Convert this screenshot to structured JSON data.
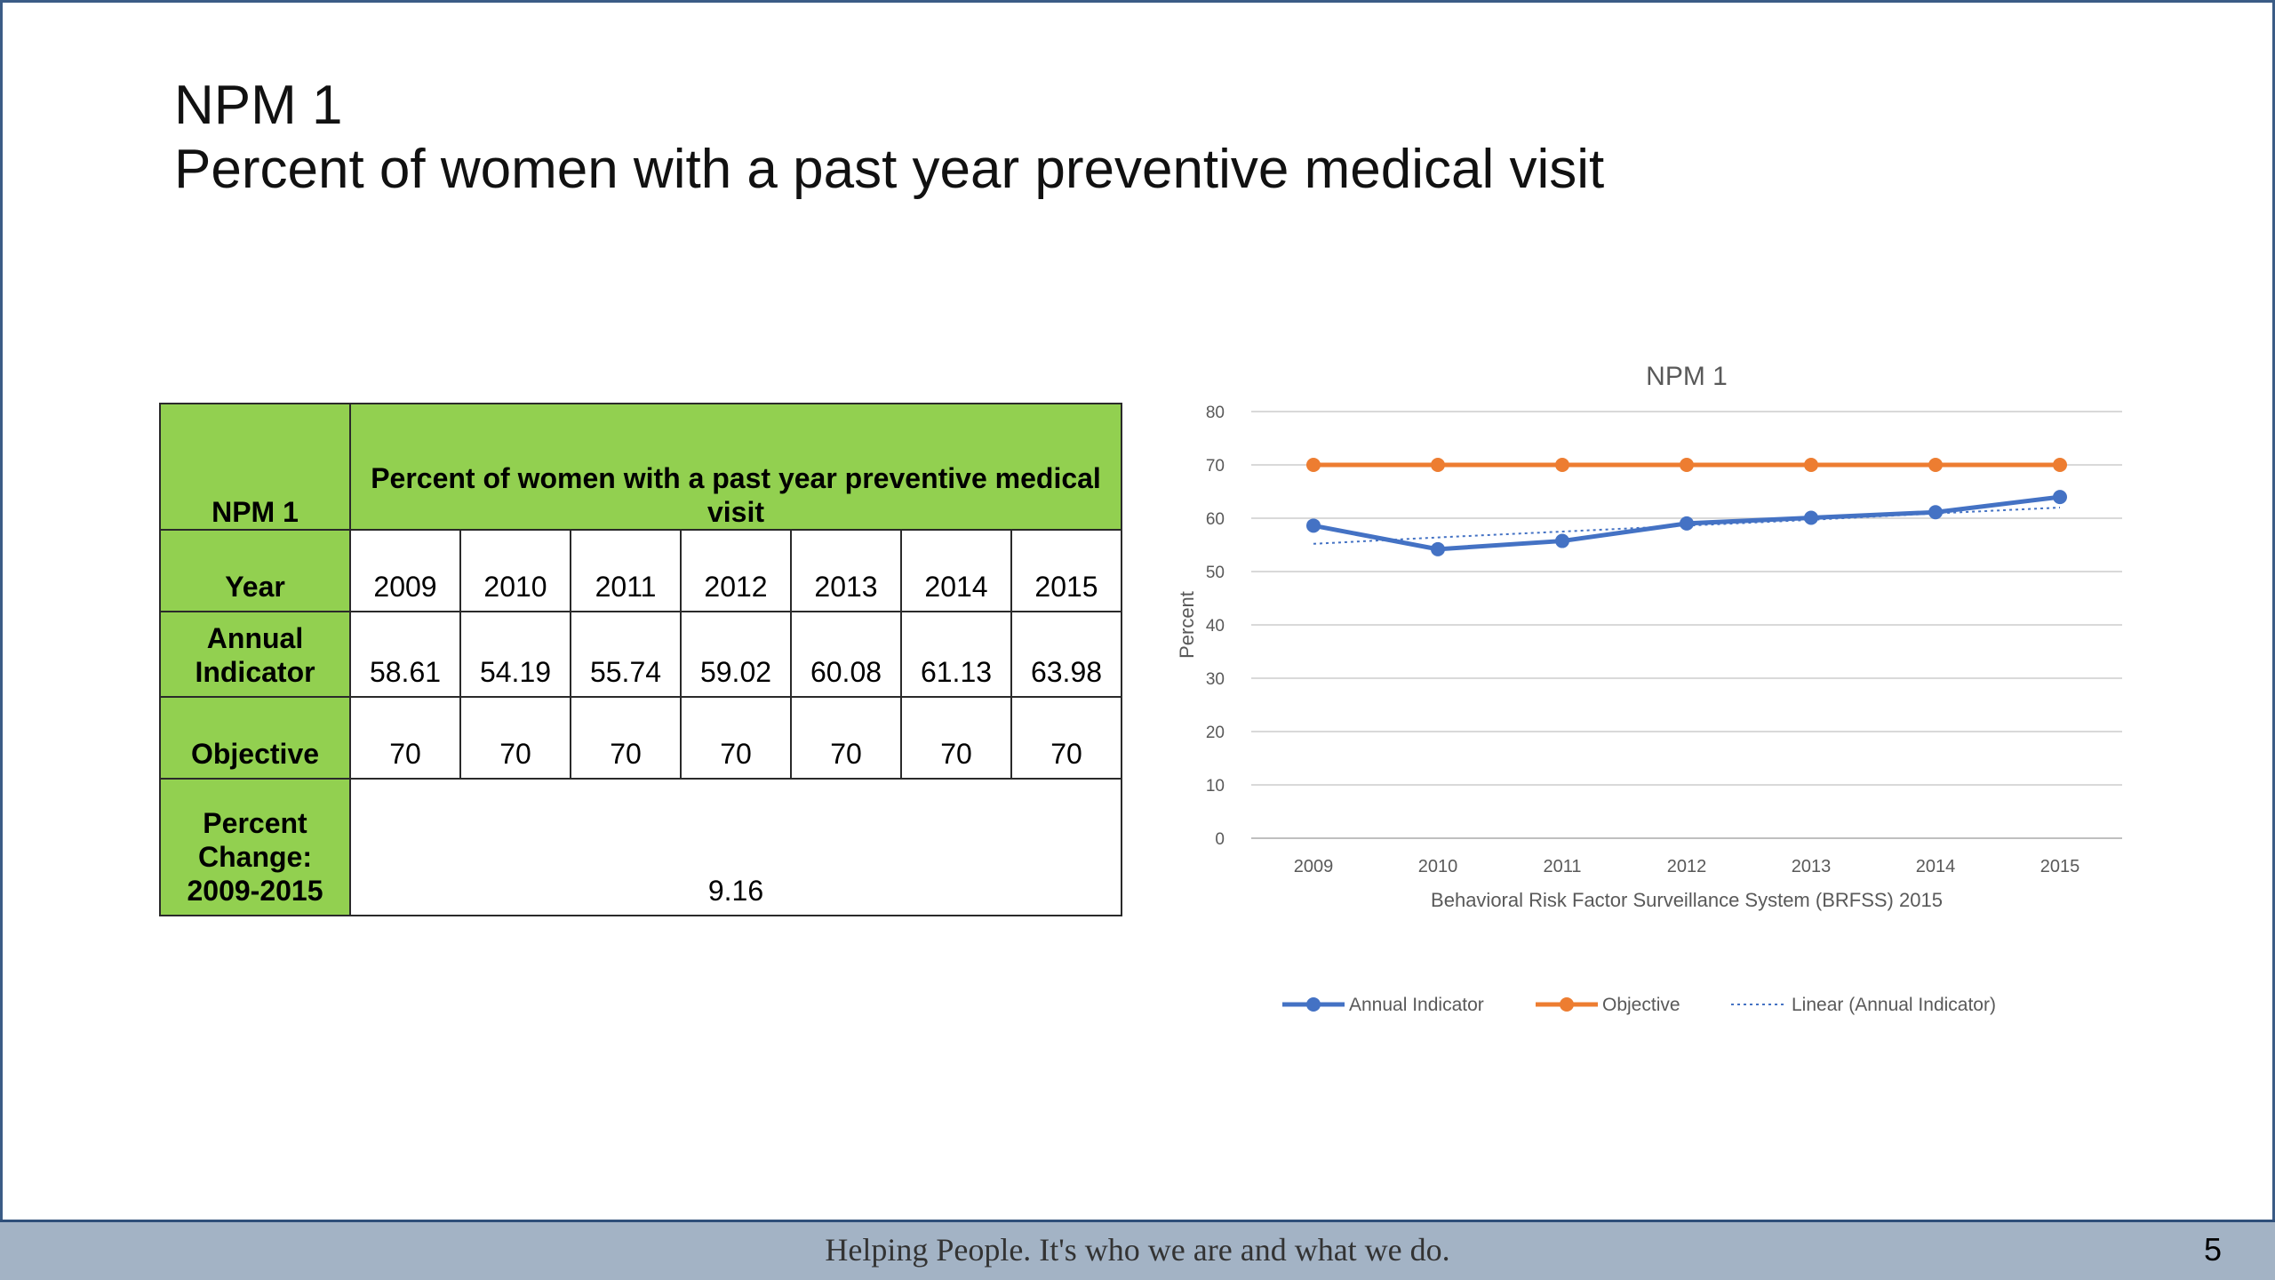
{
  "slide": {
    "title_line1": "NPM 1",
    "title_line2": "Percent of women with a past year preventive medical visit",
    "footer_text": "Helping People.  It's who we are and what we do.",
    "page_number": "5"
  },
  "table": {
    "header_label": "NPM 1",
    "header_title": "Percent of women with a past year preventive medical visit",
    "year_label": "Year",
    "years": [
      "2009",
      "2010",
      "2011",
      "2012",
      "2013",
      "2014",
      "2015"
    ],
    "annual_label_1": "Annual",
    "annual_label_2": "Indicator",
    "annual_values": [
      "58.61",
      "54.19",
      "55.74",
      "59.02",
      "60.08",
      "61.13",
      "63.98"
    ],
    "objective_label": "Objective",
    "objective_values": [
      "70",
      "70",
      "70",
      "70",
      "70",
      "70",
      "70"
    ],
    "pct_label_1": "Percent",
    "pct_label_2": "Change:",
    "pct_label_3": "2009-2015",
    "pct_value": "9.16"
  },
  "chart_data": {
    "type": "line",
    "title": "NPM 1",
    "xlabel": "Behavioral Risk Factor Surveillance System (BRFSS) 2015",
    "ylabel": "Percent",
    "categories": [
      "2009",
      "2010",
      "2011",
      "2012",
      "2013",
      "2014",
      "2015"
    ],
    "ylim": [
      0,
      80
    ],
    "yticks": [
      0,
      10,
      20,
      30,
      40,
      50,
      60,
      70,
      80
    ],
    "grid": true,
    "legend_position": "bottom",
    "series": [
      {
        "name": "Annual Indicator",
        "values": [
          58.61,
          54.19,
          55.74,
          59.02,
          60.08,
          61.13,
          63.98
        ],
        "color": "#4472c4",
        "style": "solid-markers"
      },
      {
        "name": "Objective",
        "values": [
          70,
          70,
          70,
          70,
          70,
          70,
          70
        ],
        "color": "#ed7d31",
        "style": "solid-markers"
      },
      {
        "name": "Linear (Annual Indicator)",
        "values": [
          55.2,
          56.4,
          57.5,
          58.6,
          59.7,
          60.9,
          62.0
        ],
        "color": "#4472c4",
        "style": "dotted"
      }
    ]
  }
}
